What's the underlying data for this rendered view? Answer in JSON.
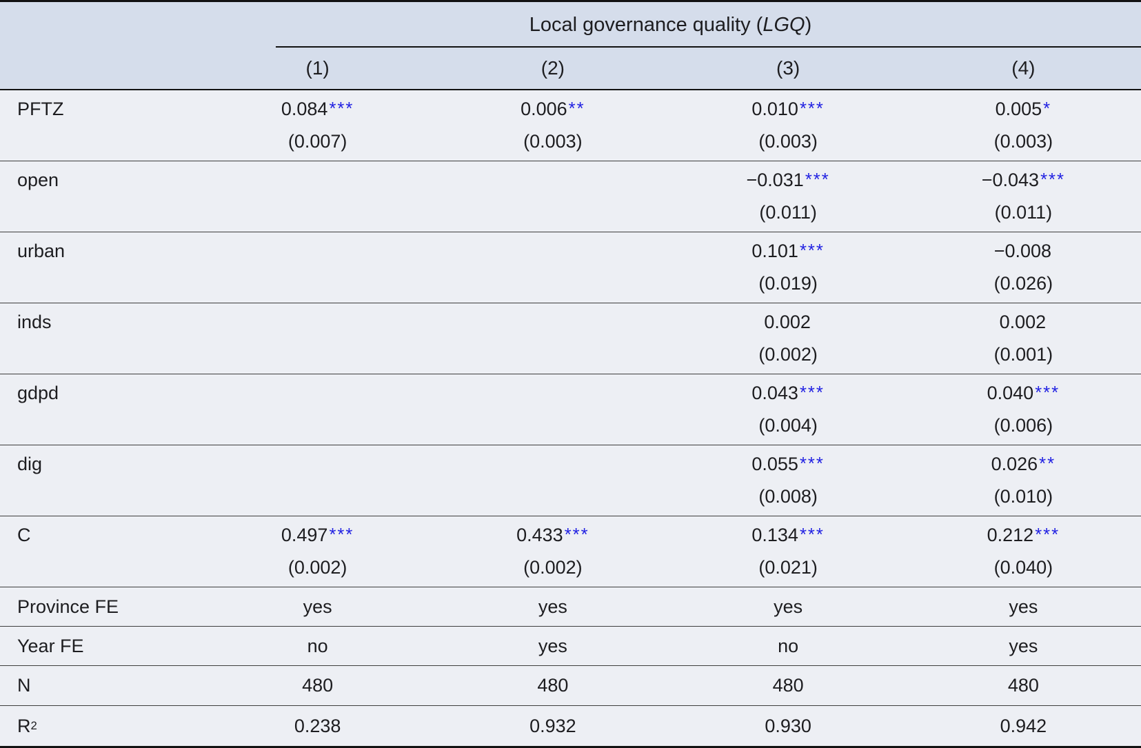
{
  "colors": {
    "header_bg": "#D5DDEB",
    "body_bg": "#EDEFF4",
    "star_blue": "#2222E2"
  },
  "header": {
    "title_prefix": "Local governance quality (",
    "title_em": "LGQ",
    "title_suffix": ")",
    "columns": [
      "(1)",
      "(2)",
      "(3)",
      "(4)"
    ]
  },
  "coef_rows": [
    {
      "label": "PFTZ",
      "cells": [
        {
          "value": "0.084",
          "stars": "***",
          "se": "(0.007)"
        },
        {
          "value": "0.006",
          "stars": "**",
          "se": "(0.003)"
        },
        {
          "value": "0.010",
          "stars": "***",
          "se": "(0.003)"
        },
        {
          "value": "0.005",
          "stars": "*",
          "se": "(0.003)"
        }
      ]
    },
    {
      "label": "open",
      "cells": [
        {
          "value": "",
          "stars": "",
          "se": ""
        },
        {
          "value": "",
          "stars": "",
          "se": ""
        },
        {
          "value": "−0.031",
          "stars": "***",
          "se": "(0.011)"
        },
        {
          "value": "−0.043",
          "stars": "***",
          "se": "(0.011)"
        }
      ]
    },
    {
      "label": "urban",
      "cells": [
        {
          "value": "",
          "stars": "",
          "se": ""
        },
        {
          "value": "",
          "stars": "",
          "se": ""
        },
        {
          "value": "0.101",
          "stars": "***",
          "se": "(0.019)"
        },
        {
          "value": "−0.008",
          "stars": "",
          "se": "(0.026)"
        }
      ]
    },
    {
      "label": "inds",
      "cells": [
        {
          "value": "",
          "stars": "",
          "se": ""
        },
        {
          "value": "",
          "stars": "",
          "se": ""
        },
        {
          "value": "0.002",
          "stars": "",
          "se": "(0.002)"
        },
        {
          "value": "0.002",
          "stars": "",
          "se": "(0.001)"
        }
      ]
    },
    {
      "label": "gdpd",
      "cells": [
        {
          "value": "",
          "stars": "",
          "se": ""
        },
        {
          "value": "",
          "stars": "",
          "se": ""
        },
        {
          "value": "0.043",
          "stars": "***",
          "se": "(0.004)"
        },
        {
          "value": "0.040",
          "stars": "***",
          "se": "(0.006)"
        }
      ]
    },
    {
      "label": "dig",
      "cells": [
        {
          "value": "",
          "stars": "",
          "se": ""
        },
        {
          "value": "",
          "stars": "",
          "se": ""
        },
        {
          "value": "0.055",
          "stars": "***",
          "se": "(0.008)"
        },
        {
          "value": "0.026",
          "stars": "**",
          "se": "(0.010)"
        }
      ]
    },
    {
      "label": "C",
      "cells": [
        {
          "value": "0.497",
          "stars": "***",
          "se": "(0.002)"
        },
        {
          "value": "0.433",
          "stars": "***",
          "se": "(0.002)"
        },
        {
          "value": "0.134",
          "stars": "***",
          "se": "(0.021)"
        },
        {
          "value": "0.212",
          "stars": "***",
          "se": "(0.040)"
        }
      ]
    }
  ],
  "info_rows": [
    {
      "label": "Province FE",
      "label_sup": "",
      "values": [
        "yes",
        "yes",
        "yes",
        "yes"
      ]
    },
    {
      "label": "Year FE",
      "label_sup": "",
      "values": [
        "no",
        "yes",
        "no",
        "yes"
      ]
    },
    {
      "label": "N",
      "label_sup": "",
      "values": [
        "480",
        "480",
        "480",
        "480"
      ]
    },
    {
      "label": "R",
      "label_sup": "2",
      "values": [
        "0.238",
        "0.932",
        "0.930",
        "0.942"
      ]
    }
  ]
}
